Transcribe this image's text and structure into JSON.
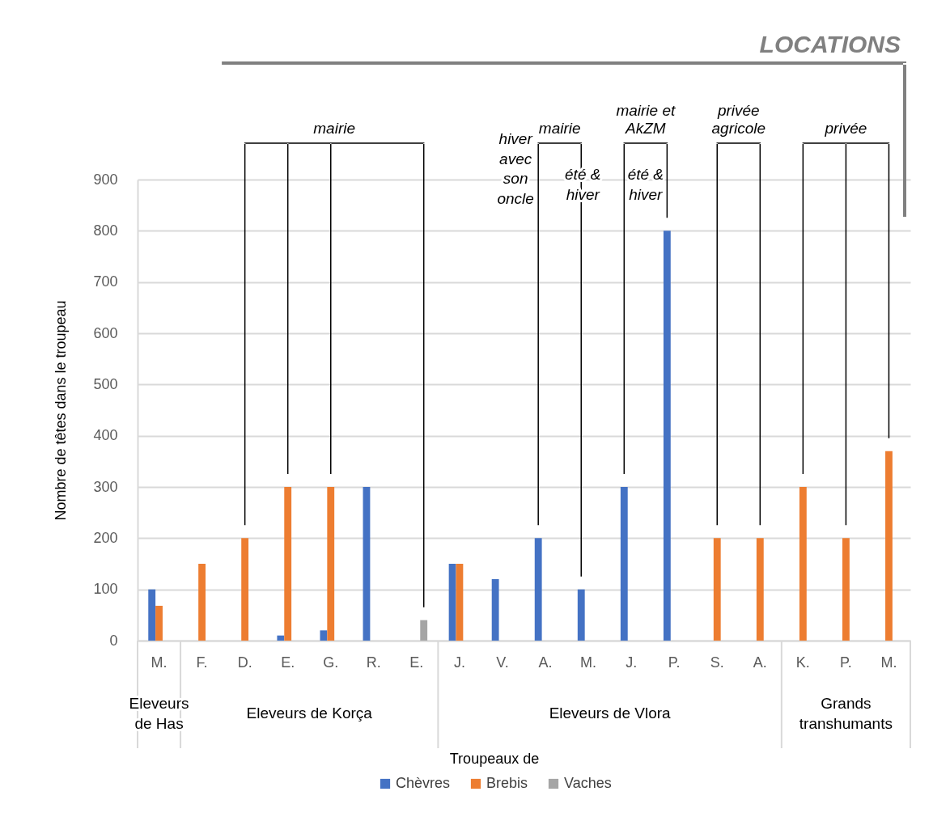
{
  "chart_data": {
    "type": "bar",
    "ylabel": "Nombre de têtes dans le troupeau",
    "legend_title": "Troupeaux de",
    "categories": [
      "M.",
      "F.",
      "D.",
      "E.",
      "G.",
      "R.",
      "E.",
      "J.",
      "V.",
      "A.",
      "M.",
      "J.",
      "P.",
      "S.",
      "A.",
      "K.",
      "P.",
      "M."
    ],
    "series": [
      {
        "name": "Chèvres",
        "color": "#4472c4",
        "values": [
          100,
          null,
          null,
          10,
          20,
          300,
          null,
          150,
          120,
          200,
          100,
          300,
          800,
          null,
          null,
          null,
          null,
          null
        ]
      },
      {
        "name": "Brebis",
        "color": "#ed7d31",
        "values": [
          68,
          150,
          200,
          300,
          300,
          null,
          null,
          150,
          null,
          null,
          null,
          null,
          null,
          200,
          200,
          300,
          200,
          370
        ]
      },
      {
        "name": "Vaches",
        "color": "#a5a5a5",
        "values": [
          null,
          null,
          null,
          null,
          null,
          null,
          40,
          null,
          null,
          null,
          null,
          null,
          null,
          null,
          null,
          null,
          null,
          null
        ]
      }
    ],
    "ylim": [
      0,
      900
    ],
    "yticks": [
      0,
      100,
      200,
      300,
      400,
      500,
      600,
      700,
      800,
      900
    ],
    "grid": "y",
    "legend": "bottom",
    "annotations": [
      "LOCATIONS",
      "mairie",
      "mairie",
      "hiver avec son oncle",
      "été & hiver",
      "mairie et AkZM",
      "été & hiver",
      "privée agricole",
      "privée",
      "Eleveurs de Has",
      "Eleveurs de Korça",
      "Eleveurs de Vlora",
      "Grands transhumants"
    ]
  }
}
